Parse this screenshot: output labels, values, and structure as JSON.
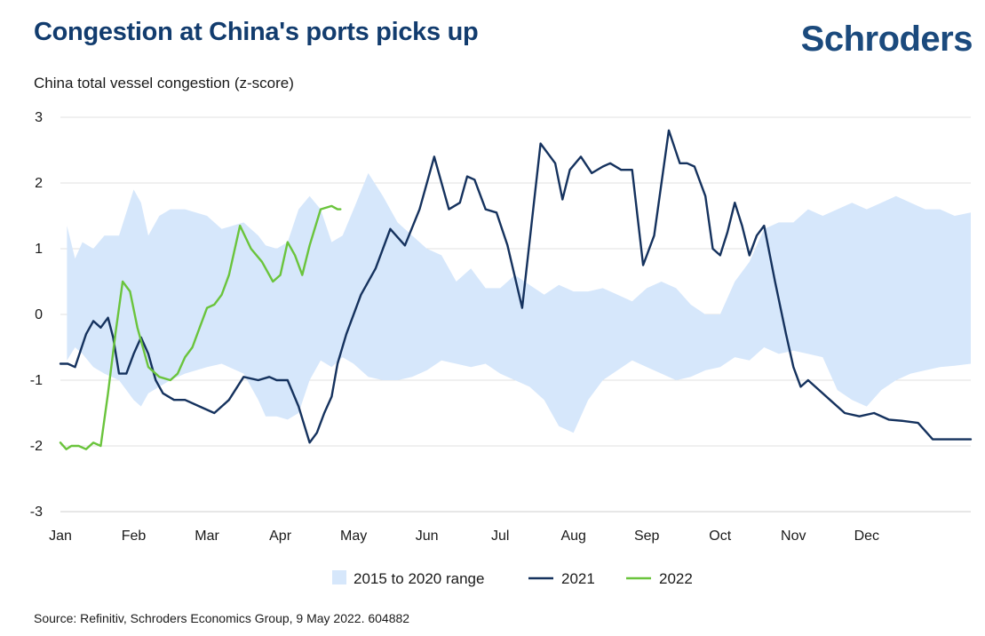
{
  "header": {
    "title": "Congestion at China's ports picks up",
    "brand": "Schroders"
  },
  "footer": {
    "source": "Source: Refinitiv, Schroders Economics Group, 9 May 2022. 604882"
  },
  "colors": {
    "range_fill": "#d6e7fb",
    "series_2021": "#15325e",
    "series_2022": "#6ac43c",
    "title": "#123c6e",
    "grid": "#e2e2e2"
  },
  "chart_data": {
    "type": "line",
    "title": "Congestion at China's ports picks up",
    "ylabel": "China total vessel congestion (z-score)",
    "xlabel": "",
    "xlim": [
      0,
      12.42
    ],
    "ylim": [
      -3,
      3
    ],
    "y_ticks": [
      3,
      2,
      1,
      0,
      -1,
      -2,
      -3
    ],
    "x_ticks": [
      {
        "label": "Jan",
        "value": 0
      },
      {
        "label": "Feb",
        "value": 1
      },
      {
        "label": "Mar",
        "value": 2
      },
      {
        "label": "Apr",
        "value": 3
      },
      {
        "label": "May",
        "value": 4
      },
      {
        "label": "Jun",
        "value": 5
      },
      {
        "label": "Jul",
        "value": 6
      },
      {
        "label": "Aug",
        "value": 7
      },
      {
        "label": "Sep",
        "value": 8
      },
      {
        "label": "Oct",
        "value": 9
      },
      {
        "label": "Nov",
        "value": 10
      },
      {
        "label": "Dec",
        "value": 11
      }
    ],
    "grid": true,
    "legend_position": "bottom",
    "range": {
      "name": "2015 to 2020 range",
      "x": [
        0.09,
        0.2,
        0.3,
        0.45,
        0.6,
        0.8,
        1.0,
        1.1,
        1.2,
        1.35,
        1.5,
        1.7,
        2.0,
        2.2,
        2.5,
        2.7,
        2.8,
        2.95,
        3.1,
        3.25,
        3.4,
        3.55,
        3.7,
        3.85,
        4.0,
        4.2,
        4.4,
        4.6,
        4.8,
        5.0,
        5.2,
        5.4,
        5.6,
        5.8,
        6.0,
        6.2,
        6.4,
        6.6,
        6.8,
        7.0,
        7.2,
        7.4,
        7.6,
        7.8,
        8.0,
        8.2,
        8.4,
        8.6,
        8.8,
        9.0,
        9.2,
        9.4,
        9.6,
        9.8,
        10.0,
        10.2,
        10.4,
        10.6,
        10.8,
        11.0,
        11.2,
        11.4,
        11.6,
        11.8,
        12.0,
        12.2,
        12.42
      ],
      "upper": [
        1.35,
        0.85,
        1.1,
        1.0,
        1.2,
        1.2,
        1.9,
        1.7,
        1.2,
        1.5,
        1.6,
        1.6,
        1.5,
        1.3,
        1.4,
        1.2,
        1.05,
        1.0,
        1.1,
        1.6,
        1.8,
        1.6,
        1.1,
        1.2,
        1.6,
        2.15,
        1.8,
        1.4,
        1.2,
        1.0,
        0.9,
        0.5,
        0.7,
        0.4,
        0.4,
        0.6,
        0.45,
        0.3,
        0.45,
        0.35,
        0.35,
        0.4,
        0.3,
        0.2,
        0.4,
        0.5,
        0.4,
        0.15,
        0.0,
        0.0,
        0.5,
        0.8,
        1.3,
        1.4,
        1.4,
        1.6,
        1.5,
        1.6,
        1.7,
        1.6,
        1.7,
        1.8,
        1.7,
        1.6,
        1.6,
        1.5,
        1.55
      ],
      "lower": [
        -0.7,
        -0.5,
        -0.6,
        -0.8,
        -0.9,
        -1.0,
        -1.3,
        -1.4,
        -1.2,
        -1.1,
        -1.0,
        -0.9,
        -0.8,
        -0.75,
        -0.9,
        -1.3,
        -1.55,
        -1.55,
        -1.6,
        -1.5,
        -1.0,
        -0.7,
        -0.8,
        -0.65,
        -0.75,
        -0.95,
        -1.0,
        -1.0,
        -0.95,
        -0.85,
        -0.7,
        -0.75,
        -0.8,
        -0.75,
        -0.9,
        -1.0,
        -1.1,
        -1.3,
        -1.7,
        -1.8,
        -1.3,
        -1.0,
        -0.85,
        -0.7,
        -0.8,
        -0.9,
        -1.0,
        -0.95,
        -0.85,
        -0.8,
        -0.65,
        -0.7,
        -0.5,
        -0.6,
        -0.55,
        -0.6,
        -0.65,
        -1.15,
        -1.3,
        -1.4,
        -1.15,
        -1.0,
        -0.9,
        -0.85,
        -0.8,
        -0.78,
        -0.75
      ]
    },
    "series": [
      {
        "name": "2021",
        "x": [
          0.0,
          0.1,
          0.2,
          0.35,
          0.45,
          0.55,
          0.65,
          0.72,
          0.8,
          0.9,
          1.0,
          1.1,
          1.2,
          1.3,
          1.4,
          1.55,
          1.7,
          1.9,
          2.1,
          2.3,
          2.5,
          2.7,
          2.85,
          2.95,
          3.1,
          3.25,
          3.4,
          3.5,
          3.6,
          3.7,
          3.78,
          3.9,
          4.1,
          4.3,
          4.5,
          4.7,
          4.9,
          5.1,
          5.3,
          5.45,
          5.55,
          5.65,
          5.8,
          5.95,
          6.1,
          6.3,
          6.55,
          6.75,
          6.85,
          6.95,
          7.1,
          7.25,
          7.4,
          7.5,
          7.65,
          7.8,
          7.95,
          8.1,
          8.3,
          8.45,
          8.55,
          8.65,
          8.8,
          8.9,
          9.0,
          9.1,
          9.2,
          9.3,
          9.4,
          9.5,
          9.6,
          9.75,
          9.9,
          10.0,
          10.1,
          10.2,
          10.3,
          10.5,
          10.7,
          10.9,
          11.1,
          11.3,
          11.5,
          11.7,
          11.9,
          12.1,
          12.25,
          12.42
        ],
        "values": [
          -0.75,
          -0.75,
          -0.8,
          -0.3,
          -0.1,
          -0.2,
          -0.05,
          -0.35,
          -0.9,
          -0.9,
          -0.6,
          -0.35,
          -0.6,
          -1.0,
          -1.2,
          -1.3,
          -1.3,
          -1.4,
          -1.5,
          -1.3,
          -0.95,
          -1.0,
          -0.95,
          -1.0,
          -1.0,
          -1.4,
          -1.95,
          -1.8,
          -1.5,
          -1.25,
          -0.75,
          -0.3,
          0.3,
          0.7,
          1.3,
          1.05,
          1.6,
          2.4,
          1.6,
          1.7,
          2.1,
          2.05,
          1.6,
          1.55,
          1.05,
          0.1,
          2.6,
          2.3,
          1.75,
          2.2,
          2.4,
          2.15,
          2.25,
          2.3,
          2.2,
          2.2,
          0.75,
          1.2,
          2.8,
          2.3,
          2.3,
          2.25,
          1.8,
          1.0,
          0.9,
          1.25,
          1.7,
          1.35,
          0.9,
          1.2,
          1.35,
          0.5,
          -0.3,
          -0.8,
          -1.1,
          -1.0,
          -1.1,
          -1.3,
          -1.5,
          -1.55,
          -1.5,
          -1.6,
          -1.62,
          -1.65,
          -1.9,
          -1.9,
          -1.9,
          -1.9
        ]
      },
      {
        "name": "2022",
        "x": [
          0.0,
          0.08,
          0.15,
          0.25,
          0.35,
          0.45,
          0.55,
          0.65,
          0.75,
          0.85,
          0.95,
          1.05,
          1.2,
          1.35,
          1.5,
          1.6,
          1.7,
          1.8,
          1.9,
          2.0,
          2.1,
          2.2,
          2.3,
          2.45,
          2.6,
          2.75,
          2.9,
          3.0,
          3.1,
          3.2,
          3.3,
          3.4,
          3.55,
          3.7,
          3.78,
          3.82
        ],
        "values": [
          -1.95,
          -2.05,
          -2.0,
          -2.0,
          -2.05,
          -1.95,
          -2.0,
          -1.2,
          -0.3,
          0.5,
          0.35,
          -0.2,
          -0.8,
          -0.95,
          -1.0,
          -0.9,
          -0.65,
          -0.5,
          -0.2,
          0.1,
          0.15,
          0.3,
          0.6,
          1.35,
          1.0,
          0.8,
          0.5,
          0.6,
          1.1,
          0.9,
          0.6,
          1.05,
          1.6,
          1.65,
          1.6,
          1.6
        ]
      }
    ],
    "legend": [
      "2015 to 2020 range",
      "2021",
      "2022"
    ]
  }
}
